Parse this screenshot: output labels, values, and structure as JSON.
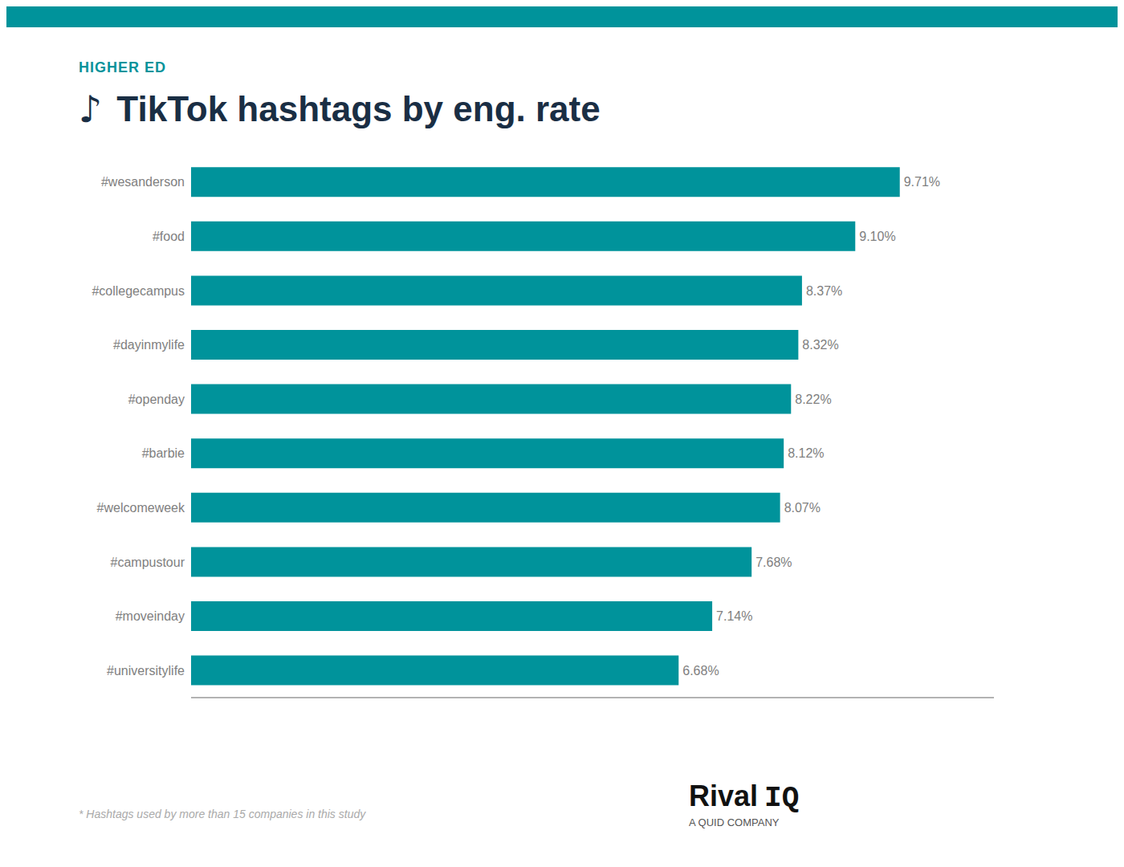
{
  "chart_data": {
    "type": "bar",
    "orientation": "horizontal",
    "subtitle": "HIGHER ED",
    "title": "TikTok hashtags by eng. rate",
    "annotations": [
      "♪",
      "* Hashtags used by more than 15 companies in this study",
      "Rival",
      "IQ",
      "A QUID COMPANY"
    ],
    "categories": [
      "#universitylife",
      "#moveinday",
      "#campustour",
      "#welcomeweek",
      "#barbie",
      "#openday",
      "#dayinmylife",
      "#collegecampus",
      "#food",
      "#wesanderson"
    ],
    "values": [
      6.68,
      7.14,
      7.68,
      8.07,
      8.12,
      8.22,
      8.32,
      8.37,
      9.1,
      9.71
    ],
    "value_labels": [
      "6.68%",
      "7.14%",
      "7.68%",
      "8.07%",
      "8.12%",
      "8.22%",
      "8.32%",
      "8.37%",
      "9.10%",
      "9.71%"
    ],
    "data_labels": true,
    "color": "#00939B",
    "xlim": [
      0,
      11
    ],
    "grid": false,
    "tick_labels": "y"
  }
}
